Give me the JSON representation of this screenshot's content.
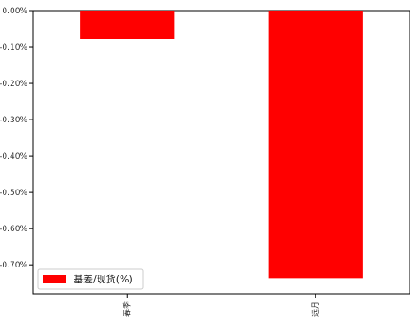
{
  "chart_data": {
    "type": "bar",
    "categories": [
      "春季",
      "远月"
    ],
    "series": [
      {
        "name": "基差/现货(%)",
        "values": [
          -0.078,
          -0.737
        ],
        "color": "#ff0000"
      }
    ],
    "ylim": [
      -0.78,
      0.0
    ],
    "yticks": [
      0.0,
      -0.1,
      -0.2,
      -0.3,
      -0.4,
      -0.5,
      -0.6,
      -0.7
    ],
    "ytick_labels": [
      "0.00%",
      "-0.10%",
      "-0.20%",
      "-0.30%",
      "-0.40%",
      "-0.50%",
      "-0.60%",
      "-0.70%"
    ],
    "xlabel": "",
    "ylabel": "",
    "title": "",
    "legend": {
      "position": "lower-left"
    },
    "grid": false,
    "category_label_rotation": 90
  }
}
